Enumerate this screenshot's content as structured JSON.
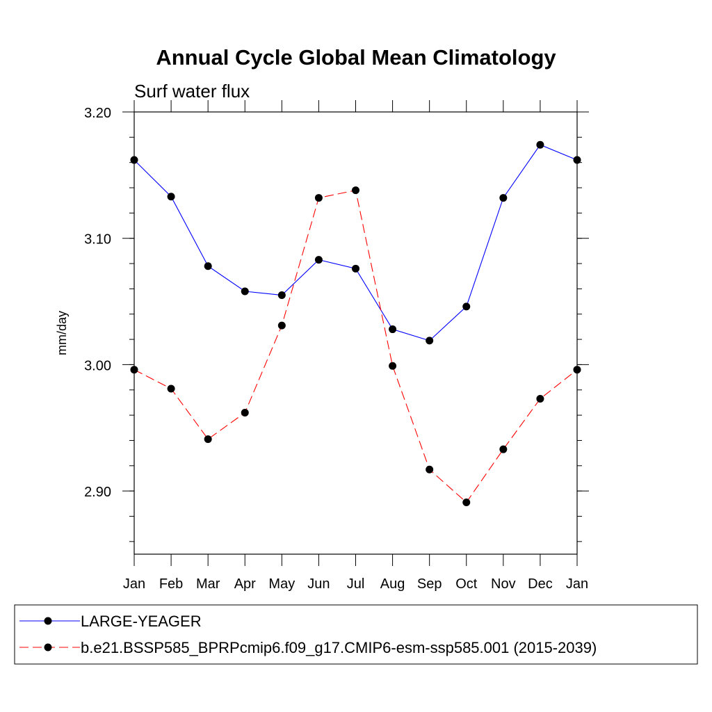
{
  "chart_data": {
    "type": "line",
    "title": "Annual Cycle Global Mean Climatology",
    "subtitle": "Surf water flux",
    "ylabel": "mm/day",
    "xlabel": "",
    "categories": [
      "Jan",
      "Feb",
      "Mar",
      "Apr",
      "May",
      "Jun",
      "Jul",
      "Aug",
      "Sep",
      "Oct",
      "Nov",
      "Dec",
      "Jan"
    ],
    "ylim": [
      2.85,
      3.2
    ],
    "yticks": [
      {
        "value": 3.2,
        "label": "3.20"
      },
      {
        "value": 3.1,
        "label": "3.10"
      },
      {
        "value": 3.0,
        "label": "3.00"
      },
      {
        "value": 2.9,
        "label": "2.90"
      }
    ],
    "series": [
      {
        "name": "LARGE-YEAGER",
        "color": "#0000ff",
        "dash": "solid",
        "values": [
          3.162,
          3.133,
          3.078,
          3.058,
          3.055,
          3.083,
          3.076,
          3.028,
          3.019,
          3.046,
          3.132,
          3.174,
          3.162
        ]
      },
      {
        "name": "b.e21.BSSP585_BPRPcmip6.f09_g17.CMIP6-esm-ssp585.001 (2015-2039)",
        "color": "#ff0000",
        "dash": "dashed",
        "values": [
          2.996,
          2.981,
          2.941,
          2.962,
          3.031,
          3.132,
          3.138,
          2.999,
          2.917,
          2.891,
          2.933,
          2.973,
          2.996
        ]
      }
    ],
    "legend_position": "bottom"
  }
}
